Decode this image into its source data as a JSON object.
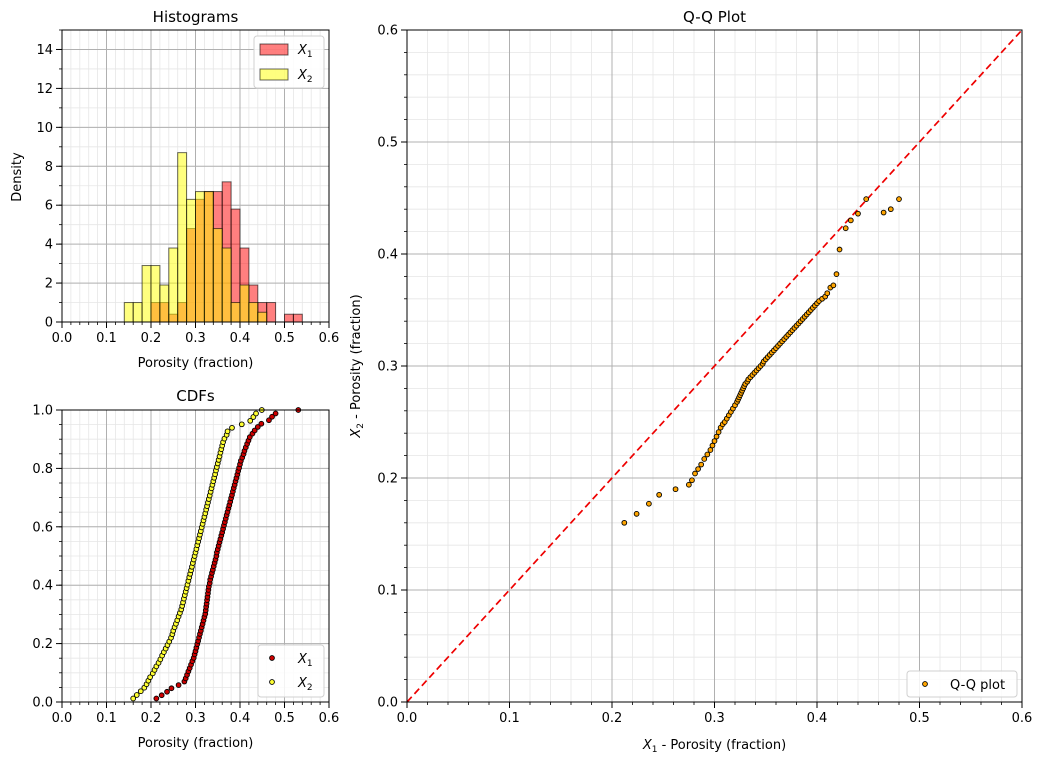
{
  "chart_data": [
    {
      "type": "bar",
      "title": "Histograms",
      "xlabel": "Porosity (fraction)",
      "ylabel": "Density",
      "xlim": [
        0.0,
        0.6
      ],
      "ylim": [
        0,
        15
      ],
      "xticks": [
        "0.0",
        "0.1",
        "0.2",
        "0.3",
        "0.4",
        "0.5",
        "0.6"
      ],
      "yticks": [
        "0",
        "2",
        "4",
        "6",
        "8",
        "10",
        "12",
        "14"
      ],
      "bin_width": 0.02,
      "legend_position": "top-right",
      "grid": true,
      "series": [
        {
          "name": "X",
          "subscript": "1",
          "color": "#ff0000",
          "bins": [
            0.2,
            0.22,
            0.24,
            0.26,
            0.28,
            0.3,
            0.32,
            0.34,
            0.36,
            0.38,
            0.4,
            0.42,
            0.44,
            0.46,
            0.48,
            0.5,
            0.52
          ],
          "values": [
            1.0,
            1.0,
            0.4,
            1.0,
            4.8,
            6.3,
            6.7,
            6.7,
            7.2,
            5.8,
            3.8,
            1.9,
            1.0,
            1.0,
            0,
            0.4,
            0.4
          ]
        },
        {
          "name": "X",
          "subscript": "2",
          "color": "#ffff00",
          "bins": [
            0.14,
            0.16,
            0.18,
            0.2,
            0.22,
            0.24,
            0.26,
            0.28,
            0.3,
            0.32,
            0.34,
            0.36,
            0.38,
            0.4,
            0.42,
            0.44
          ],
          "values": [
            1.0,
            1.0,
            2.9,
            2.9,
            1.9,
            3.8,
            8.7,
            6.3,
            6.7,
            6.7,
            4.8,
            3.8,
            1.0,
            1.9,
            1.0,
            0.5
          ]
        }
      ]
    },
    {
      "type": "scatter",
      "title": "CDFs",
      "xlabel": "Porosity (fraction)",
      "ylabel": "",
      "xlim": [
        0.0,
        0.6
      ],
      "ylim": [
        0.0,
        1.0
      ],
      "xticks": [
        "0.0",
        "0.1",
        "0.2",
        "0.3",
        "0.4",
        "0.5",
        "0.6"
      ],
      "yticks": [
        "0.0",
        "0.2",
        "0.4",
        "0.6",
        "0.8",
        "1.0"
      ],
      "legend_position": "bottom-right",
      "grid": true,
      "series": [
        {
          "name": "X",
          "subscript": "1",
          "color": "#cc0000",
          "x": [
            0.212,
            0.224,
            0.236,
            0.246,
            0.262,
            0.275,
            0.278,
            0.281,
            0.284,
            0.287,
            0.29,
            0.293,
            0.296,
            0.298,
            0.3,
            0.302,
            0.304,
            0.306,
            0.308,
            0.31,
            0.312,
            0.314,
            0.316,
            0.318,
            0.32,
            0.322,
            0.323,
            0.324,
            0.325,
            0.326,
            0.327,
            0.328,
            0.329,
            0.33,
            0.332,
            0.333,
            0.335,
            0.337,
            0.339,
            0.341,
            0.343,
            0.345,
            0.347,
            0.348,
            0.35,
            0.352,
            0.354,
            0.356,
            0.358,
            0.36,
            0.362,
            0.364,
            0.366,
            0.368,
            0.37,
            0.372,
            0.374,
            0.376,
            0.378,
            0.38,
            0.382,
            0.384,
            0.386,
            0.388,
            0.39,
            0.392,
            0.394,
            0.396,
            0.398,
            0.4,
            0.402,
            0.405,
            0.408,
            0.41,
            0.413,
            0.416,
            0.419,
            0.422,
            0.428,
            0.433,
            0.44,
            0.448,
            0.465,
            0.472,
            0.48,
            0.531
          ],
          "y": [
            0.012,
            0.023,
            0.035,
            0.047,
            0.058,
            0.07,
            0.081,
            0.093,
            0.105,
            0.116,
            0.128,
            0.14,
            0.151,
            0.163,
            0.174,
            0.186,
            0.198,
            0.209,
            0.221,
            0.233,
            0.244,
            0.256,
            0.267,
            0.279,
            0.291,
            0.302,
            0.314,
            0.326,
            0.337,
            0.349,
            0.36,
            0.372,
            0.384,
            0.395,
            0.407,
            0.419,
            0.43,
            0.442,
            0.453,
            0.465,
            0.477,
            0.488,
            0.5,
            0.512,
            0.523,
            0.535,
            0.547,
            0.558,
            0.57,
            0.581,
            0.593,
            0.605,
            0.616,
            0.628,
            0.64,
            0.651,
            0.663,
            0.674,
            0.686,
            0.698,
            0.709,
            0.721,
            0.733,
            0.744,
            0.756,
            0.767,
            0.779,
            0.791,
            0.802,
            0.814,
            0.826,
            0.837,
            0.849,
            0.86,
            0.872,
            0.884,
            0.895,
            0.907,
            0.919,
            0.93,
            0.942,
            0.953,
            0.965,
            0.977,
            0.988,
            1.0
          ]
        },
        {
          "name": "X",
          "subscript": "2",
          "color": "#ffff33",
          "x": [
            0.16,
            0.168,
            0.177,
            0.185,
            0.19,
            0.194,
            0.198,
            0.204,
            0.208,
            0.212,
            0.217,
            0.221,
            0.225,
            0.229,
            0.233,
            0.237,
            0.241,
            0.245,
            0.248,
            0.25,
            0.253,
            0.256,
            0.259,
            0.262,
            0.265,
            0.268,
            0.27,
            0.272,
            0.274,
            0.276,
            0.278,
            0.28,
            0.282,
            0.284,
            0.286,
            0.288,
            0.29,
            0.292,
            0.294,
            0.296,
            0.298,
            0.3,
            0.302,
            0.304,
            0.306,
            0.308,
            0.31,
            0.312,
            0.314,
            0.316,
            0.318,
            0.32,
            0.322,
            0.324,
            0.326,
            0.328,
            0.33,
            0.332,
            0.334,
            0.336,
            0.338,
            0.34,
            0.342,
            0.344,
            0.346,
            0.348,
            0.35,
            0.352,
            0.354,
            0.356,
            0.358,
            0.36,
            0.362,
            0.365,
            0.37,
            0.372,
            0.382,
            0.404,
            0.423,
            0.43,
            0.436,
            0.449
          ],
          "y": [
            0.012,
            0.024,
            0.037,
            0.049,
            0.061,
            0.073,
            0.085,
            0.098,
            0.11,
            0.122,
            0.134,
            0.146,
            0.159,
            0.171,
            0.183,
            0.195,
            0.207,
            0.22,
            0.232,
            0.244,
            0.256,
            0.268,
            0.28,
            0.293,
            0.305,
            0.317,
            0.329,
            0.341,
            0.354,
            0.366,
            0.378,
            0.39,
            0.402,
            0.415,
            0.427,
            0.439,
            0.451,
            0.463,
            0.476,
            0.488,
            0.5,
            0.512,
            0.524,
            0.537,
            0.549,
            0.561,
            0.573,
            0.585,
            0.598,
            0.61,
            0.622,
            0.634,
            0.646,
            0.659,
            0.671,
            0.683,
            0.695,
            0.707,
            0.72,
            0.732,
            0.744,
            0.756,
            0.768,
            0.78,
            0.793,
            0.805,
            0.817,
            0.829,
            0.841,
            0.854,
            0.866,
            0.878,
            0.89,
            0.902,
            0.915,
            0.927,
            0.939,
            0.951,
            0.963,
            0.976,
            0.988,
            1.0
          ]
        }
      ]
    },
    {
      "type": "scatter",
      "title": "Q-Q Plot",
      "xlabel_var": "X",
      "xlabel_sub": "1",
      "xlabel_rest": " - Porosity (fraction)",
      "ylabel_var": "X",
      "ylabel_sub": "2",
      "ylabel_rest": " - Porosity (fraction)",
      "xlim": [
        0.0,
        0.6
      ],
      "ylim": [
        0.0,
        0.6
      ],
      "xticks": [
        "0.0",
        "0.1",
        "0.2",
        "0.3",
        "0.4",
        "0.5",
        "0.6"
      ],
      "yticks": [
        "0.0",
        "0.1",
        "0.2",
        "0.3",
        "0.4",
        "0.5",
        "0.6"
      ],
      "legend_position": "bottom-right",
      "grid": true,
      "reference_line": {
        "from": [
          0.0,
          0.0
        ],
        "to": [
          0.6,
          0.6
        ],
        "color": "#ee0000",
        "style": "dashed"
      },
      "series": [
        {
          "name": "Q-Q plot",
          "color": "#ffa500",
          "x": [
            0.212,
            0.224,
            0.236,
            0.246,
            0.262,
            0.275,
            0.278,
            0.281,
            0.284,
            0.287,
            0.29,
            0.293,
            0.296,
            0.298,
            0.3,
            0.302,
            0.304,
            0.306,
            0.308,
            0.31,
            0.312,
            0.314,
            0.316,
            0.318,
            0.32,
            0.322,
            0.323,
            0.324,
            0.325,
            0.326,
            0.327,
            0.328,
            0.329,
            0.33,
            0.332,
            0.333,
            0.335,
            0.337,
            0.339,
            0.341,
            0.343,
            0.345,
            0.347,
            0.348,
            0.35,
            0.352,
            0.354,
            0.356,
            0.358,
            0.36,
            0.362,
            0.364,
            0.366,
            0.368,
            0.37,
            0.372,
            0.374,
            0.376,
            0.378,
            0.38,
            0.382,
            0.384,
            0.386,
            0.388,
            0.39,
            0.392,
            0.394,
            0.396,
            0.398,
            0.4,
            0.402,
            0.405,
            0.408,
            0.41,
            0.413,
            0.416,
            0.419,
            0.422,
            0.428,
            0.433,
            0.44,
            0.448,
            0.465,
            0.472,
            0.48
          ],
          "y": [
            0.16,
            0.168,
            0.177,
            0.185,
            0.19,
            0.194,
            0.198,
            0.204,
            0.208,
            0.212,
            0.217,
            0.221,
            0.225,
            0.229,
            0.233,
            0.237,
            0.241,
            0.245,
            0.248,
            0.25,
            0.253,
            0.256,
            0.259,
            0.262,
            0.265,
            0.268,
            0.27,
            0.272,
            0.274,
            0.276,
            0.278,
            0.28,
            0.282,
            0.284,
            0.286,
            0.288,
            0.29,
            0.292,
            0.294,
            0.296,
            0.298,
            0.3,
            0.302,
            0.304,
            0.306,
            0.308,
            0.31,
            0.312,
            0.314,
            0.316,
            0.318,
            0.32,
            0.322,
            0.324,
            0.326,
            0.328,
            0.33,
            0.332,
            0.334,
            0.336,
            0.338,
            0.34,
            0.342,
            0.344,
            0.346,
            0.348,
            0.35,
            0.352,
            0.354,
            0.356,
            0.358,
            0.36,
            0.362,
            0.365,
            0.37,
            0.372,
            0.382,
            0.404,
            0.423,
            0.43,
            0.436,
            0.449,
            0.437,
            0.44,
            0.449
          ]
        }
      ]
    }
  ]
}
